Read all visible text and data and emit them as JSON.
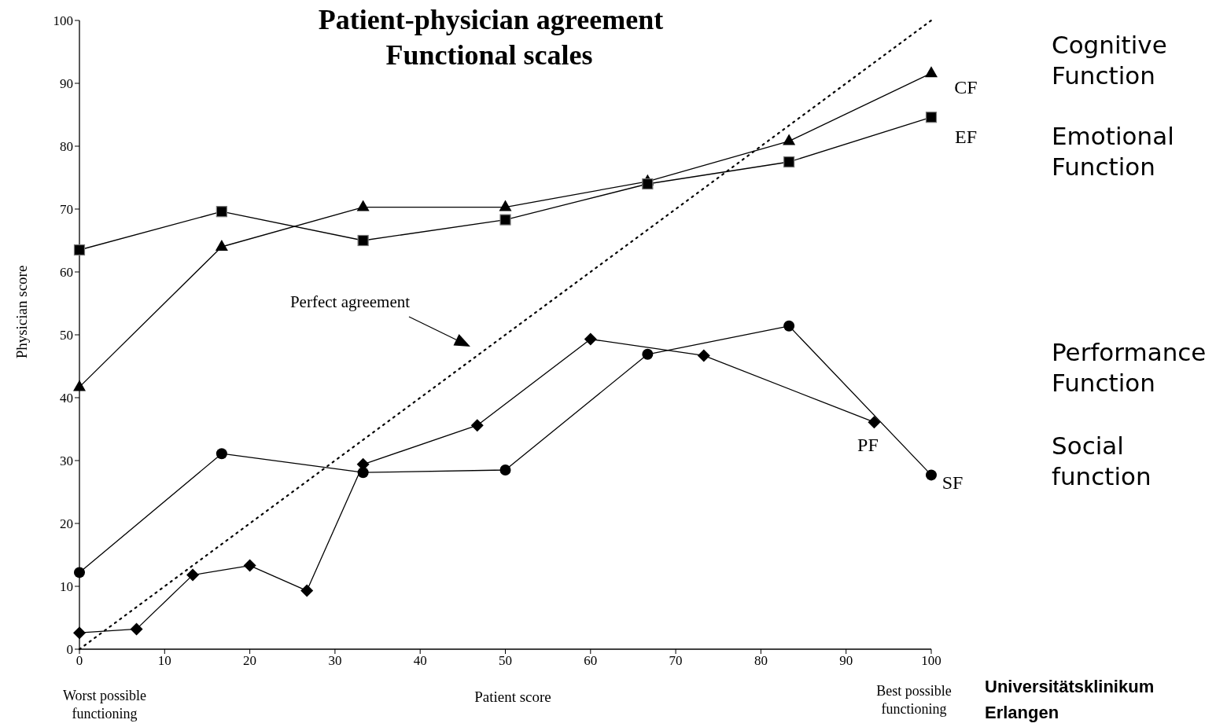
{
  "chart_data": {
    "type": "line",
    "title": "Patient-physician agreement",
    "subtitle": "Functional scales",
    "xlabel": "Patient score",
    "ylabel": "Physician score",
    "xlim": [
      0,
      100
    ],
    "ylim": [
      0,
      100
    ],
    "xticks": [
      0,
      10,
      20,
      30,
      40,
      50,
      60,
      70,
      80,
      90,
      100
    ],
    "yticks": [
      0,
      10,
      20,
      30,
      40,
      50,
      60,
      70,
      80,
      90,
      100
    ],
    "line_style": "solid",
    "series": [
      {
        "name": "CF",
        "color": "#000000",
        "marker": "triangle",
        "x": [
          0,
          16.7,
          33.3,
          50,
          66.7,
          83.3,
          100
        ],
        "values": [
          41.7,
          64.0,
          70.3,
          70.3,
          74.4,
          80.8,
          91.6
        ]
      },
      {
        "name": "EF",
        "color": "#000000",
        "marker": "square",
        "x": [
          0,
          16.7,
          33.3,
          50,
          66.7,
          83.3,
          100
        ],
        "values": [
          63.5,
          69.6,
          65.0,
          68.3,
          74.0,
          77.5,
          84.6
        ]
      },
      {
        "name": "PF",
        "color": "#000000",
        "marker": "diamond",
        "x": [
          0,
          6.7,
          13.3,
          20,
          26.7,
          33.3,
          46.7,
          60,
          73.3,
          93.3
        ],
        "values": [
          2.6,
          3.2,
          11.8,
          13.3,
          9.3,
          29.4,
          35.6,
          49.3,
          46.7,
          36.1
        ]
      },
      {
        "name": "SF",
        "color": "#000000",
        "marker": "circle",
        "x": [
          0,
          16.7,
          33.3,
          50,
          66.7,
          83.3,
          100
        ],
        "values": [
          12.2,
          31.1,
          28.1,
          28.5,
          46.9,
          51.4,
          27.7
        ]
      },
      {
        "type": "line",
        "color": "#000000",
        "marker": "none",
        "line_style": "dotted",
        "x": [
          0,
          100
        ],
        "values": [
          0,
          100
        ]
      }
    ],
    "annotations": [
      "Perfect agreement",
      "Worst possible functioning",
      "Best possible functioning",
      "Cognitive Function",
      "Emotional Function",
      "Performance Function",
      "Social function",
      "Universitätsklinikum Erlangen"
    ]
  }
}
